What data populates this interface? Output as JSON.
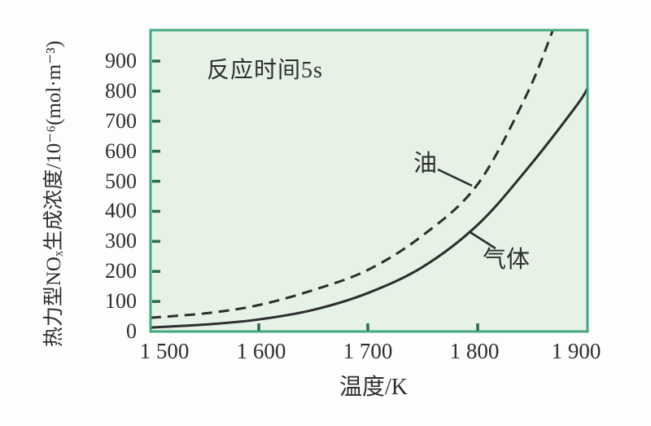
{
  "chart_data": {
    "type": "line",
    "annotation": "反应时间5s",
    "xlabel": "温度/K",
    "ylabel": "热力型NOₓ生成浓度/10⁻⁶(mol·m⁻³)",
    "x_range": [
      1490,
      1912
    ],
    "y_range": [
      0,
      1000
    ],
    "grid": false,
    "legend_position": "inline-labels-with-leader-lines",
    "x_ticks": [
      {
        "value": 1500,
        "label": "1 500"
      },
      {
        "value": 1600,
        "label": "1 600"
      },
      {
        "value": 1700,
        "label": "1 700"
      },
      {
        "value": 1800,
        "label": "1 800"
      },
      {
        "value": 1900,
        "label": "1 900"
      }
    ],
    "y_ticks": [
      {
        "value": 0,
        "label": "0"
      },
      {
        "value": 100,
        "label": "100"
      },
      {
        "value": 200,
        "label": "200"
      },
      {
        "value": 300,
        "label": "300"
      },
      {
        "value": 400,
        "label": "400"
      },
      {
        "value": 500,
        "label": "500"
      },
      {
        "value": 600,
        "label": "600"
      },
      {
        "value": 700,
        "label": "700"
      },
      {
        "value": 800,
        "label": "800"
      },
      {
        "value": 900,
        "label": "900"
      }
    ],
    "series": [
      {
        "name": "油",
        "line_style": "dashed",
        "x": [
          1490,
          1500,
          1550,
          1600,
          1650,
          1700,
          1750,
          1800,
          1850,
          1876
        ],
        "y": [
          46,
          48,
          62,
          88,
          138,
          205,
          320,
          490,
          790,
          1000
        ]
      },
      {
        "name": "气体",
        "line_style": "solid",
        "x": [
          1490,
          1500,
          1550,
          1600,
          1650,
          1700,
          1750,
          1800,
          1850,
          1900,
          1912
        ],
        "y": [
          13,
          15,
          24,
          40,
          72,
          128,
          215,
          355,
          540,
          750,
          810
        ]
      }
    ]
  },
  "colors": {
    "page_background": "#fdfdfd",
    "plot_background": "#e6f2e6",
    "plot_border": "#43a87e",
    "tick_mark": "#2a6b50",
    "curve": "#2d2d2d",
    "text": "#2e2e2e"
  }
}
